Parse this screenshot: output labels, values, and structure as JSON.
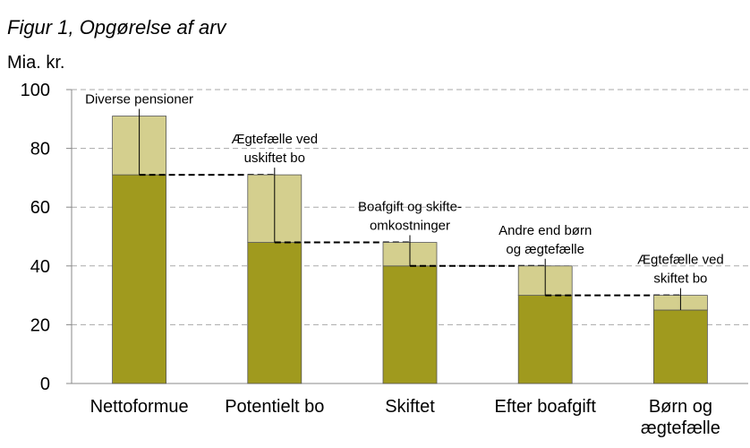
{
  "chart_data": {
    "type": "stacked_bar",
    "title": "Figur 1, Opgørelse af arv",
    "y_axis_label": "Mia. kr.",
    "categories": [
      "Nettoformue",
      "Potentielt bo",
      "Skiftet",
      "Efter boafgift",
      "Børn og ægtefælle"
    ],
    "series": [
      {
        "color": "#a09a1e",
        "values": [
          71,
          48,
          40,
          30,
          25
        ]
      },
      {
        "color": "#d4cf8e",
        "values": [
          20,
          23,
          8,
          10,
          5
        ]
      }
    ],
    "annotations": [
      [
        "Diverse pensioner"
      ],
      [
        "Ægtefælle ved",
        "uskiftet bo"
      ],
      [
        "Boafgift og skifte-",
        "omkostninger"
      ],
      [
        "Andre end børn",
        "og ægtefælle"
      ],
      [
        "Ægtefælle ved",
        "skiftet bo"
      ]
    ],
    "ylim": [
      0,
      100
    ],
    "yticks": [
      0,
      20,
      40,
      60,
      80,
      100
    ],
    "grid": true
  }
}
